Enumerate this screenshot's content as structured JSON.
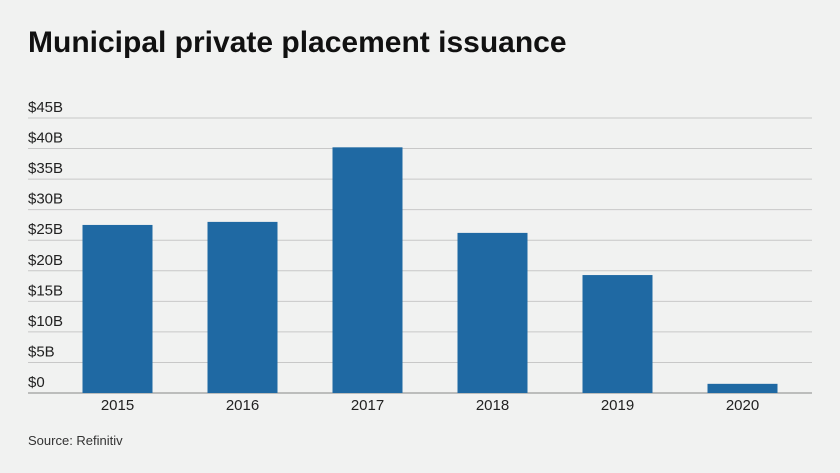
{
  "chart_data": {
    "type": "bar",
    "title": "Municipal private placement issuance",
    "categories": [
      "2015",
      "2016",
      "2017",
      "2018",
      "2019",
      "2020"
    ],
    "values": [
      27.5,
      28.0,
      40.2,
      26.2,
      19.3,
      1.5
    ],
    "color": "#1f69a3",
    "ylim": [
      0,
      45
    ],
    "yticks": [
      {
        "value": 0,
        "label": "$0"
      },
      {
        "value": 5,
        "label": "$5B"
      },
      {
        "value": 10,
        "label": "$10B"
      },
      {
        "value": 15,
        "label": "$15B"
      },
      {
        "value": 20,
        "label": "$20B"
      },
      {
        "value": 25,
        "label": "$25B"
      },
      {
        "value": 30,
        "label": "$30B"
      },
      {
        "value": 35,
        "label": "$35B"
      },
      {
        "value": 40,
        "label": "$40B"
      },
      {
        "value": 45,
        "label": "$45B"
      }
    ],
    "grid": true,
    "source": "Source: Refinitiv"
  }
}
